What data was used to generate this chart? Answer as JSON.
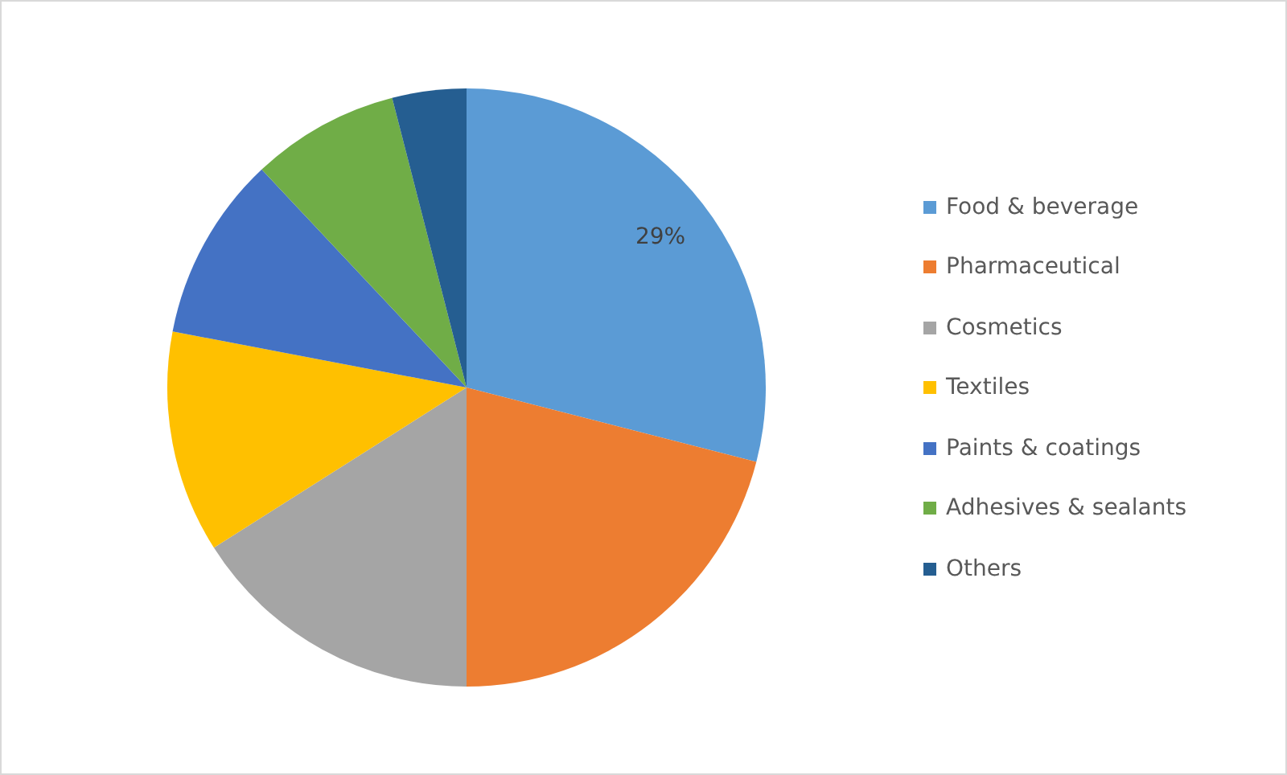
{
  "chart_data": {
    "type": "pie",
    "categories": [
      "Food & beverage",
      "Pharmaceutical",
      "Cosmetics",
      "Textiles",
      "Paints & coatings",
      "Adhesives & sealants",
      "Others"
    ],
    "values": [
      29,
      21,
      16,
      12,
      10,
      8,
      4
    ],
    "colors": [
      "#5b9bd5",
      "#ed7d31",
      "#a5a5a5",
      "#ffc000",
      "#4472c4",
      "#70ad47",
      "#255e91"
    ],
    "value_labels": [
      "29%",
      null,
      null,
      null,
      null,
      null,
      null
    ],
    "legend": "right"
  }
}
